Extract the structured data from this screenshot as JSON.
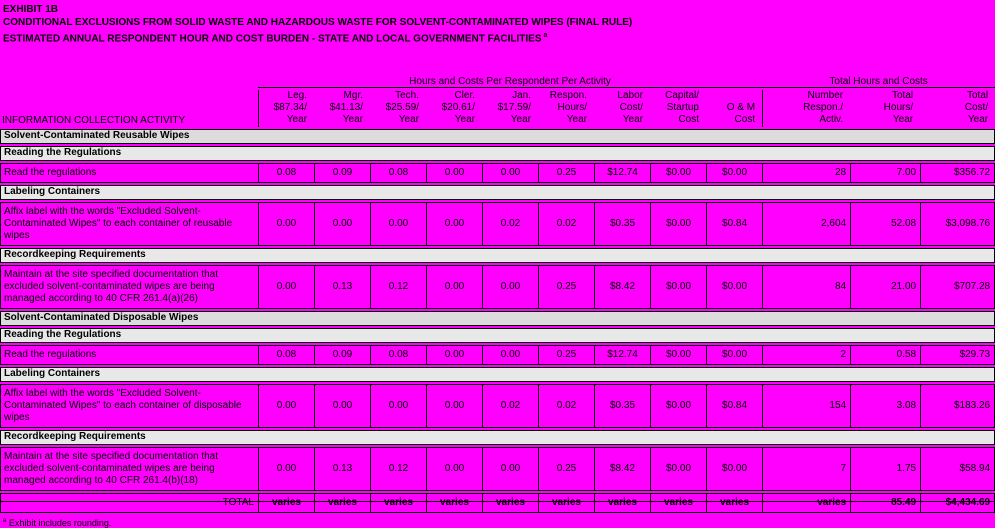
{
  "page": {
    "bg_color": "#FF00FF",
    "section_row_color": "#DCDCDC",
    "subsection_row_color": "#E8E8E8",
    "text_color": "#000000"
  },
  "title": {
    "line1": "EXHIBIT 1B",
    "line2": "CONDITIONAL EXCLUSIONS FROM SOLID WASTE AND HAZARDOUS WASTE FOR SOLVENT-CONTAMINATED WIPES (FINAL RULE)",
    "line3": "ESTIMATED ANNUAL RESPONDENT HOUR AND COST BURDEN - STATE AND LOCAL GOVERNMENT FACILITIES",
    "line3_superscript": "a"
  },
  "table": {
    "group_headers": {
      "per_respondent": "Hours and Costs Per Respondent Per Activity",
      "totals": "Total Hours and Costs"
    },
    "activity_header": "INFORMATION COLLECTION ACTIVITY",
    "columns": [
      {
        "l1": "Leg.",
        "l2": "$87.34/",
        "l3": "Year"
      },
      {
        "l1": "Mgr.",
        "l2": "$41.13/",
        "l3": "Year"
      },
      {
        "l1": "Tech.",
        "l2": "$25.59/",
        "l3": "Year"
      },
      {
        "l1": "Cler.",
        "l2": "$20.61/",
        "l3": "Year"
      },
      {
        "l1": "Jan.",
        "l2": "$17.59/",
        "l3": "Year"
      },
      {
        "l1": "Respon.",
        "l2": "Hours/",
        "l3": "Year"
      },
      {
        "l1": "Labor",
        "l2": "Cost/",
        "l3": "Year"
      },
      {
        "l1": "Capital/",
        "l2": "Startup",
        "l3": "Cost"
      },
      {
        "l1": "",
        "l2": "O & M",
        "l3": "Cost"
      },
      {
        "l1": "Number",
        "l2": "Respon./",
        "l3": "Activ."
      },
      {
        "l1": "Total",
        "l2": "Hours/",
        "l3": "Year"
      },
      {
        "l1": "Total",
        "l2": "Cost/",
        "l3": "Year"
      }
    ],
    "rows": [
      {
        "type": "section",
        "label": "Solvent-Contaminated Reusable Wipes"
      },
      {
        "type": "subsection",
        "label": "Reading the Regulations"
      },
      {
        "type": "data",
        "label": "Read the regulations",
        "values": [
          "0.08",
          "0.09",
          "0.08",
          "0.00",
          "0.00",
          "0.25",
          "$12.74",
          "$0.00",
          "$0.00",
          "28",
          "7.00",
          "$356.72"
        ]
      },
      {
        "type": "subsection",
        "label": "Labeling Containers"
      },
      {
        "type": "data",
        "label": "Affix label with the words \"Excluded Solvent-Contaminated Wipes\" to each container of reusable wipes",
        "values": [
          "0.00",
          "0.00",
          "0.00",
          "0.00",
          "0.02",
          "0.02",
          "$0.35",
          "$0.00",
          "$0.84",
          "2,604",
          "52.08",
          "$3,098.76"
        ]
      },
      {
        "type": "subsection",
        "label": "Recordkeeping Requirements"
      },
      {
        "type": "data",
        "label": "Maintain at the site specified documentation that excluded solvent-contaminated wipes are being managed according to 40 CFR 261.4(a)(26)",
        "values": [
          "0.00",
          "0.13",
          "0.12",
          "0.00",
          "0.00",
          "0.25",
          "$8.42",
          "$0.00",
          "$0.00",
          "84",
          "21.00",
          "$707.28"
        ]
      },
      {
        "type": "section",
        "label": "Solvent-Contaminated Disposable Wipes"
      },
      {
        "type": "subsection",
        "label": "Reading the Regulations"
      },
      {
        "type": "data",
        "label": "Read the regulations",
        "values": [
          "0.08",
          "0.09",
          "0.08",
          "0.00",
          "0.00",
          "0.25",
          "$12.74",
          "$0.00",
          "$0.00",
          "2",
          "0.58",
          "$29.73"
        ]
      },
      {
        "type": "subsection",
        "label": "Labeling Containers"
      },
      {
        "type": "data",
        "label": "Affix label with the words \"Excluded Solvent-Contaminated Wipes\" to each container of disposable wipes",
        "values": [
          "0.00",
          "0.00",
          "0.00",
          "0.00",
          "0.02",
          "0.02",
          "$0.35",
          "$0.00",
          "$0.84",
          "154",
          "3.08",
          "$183.26"
        ]
      },
      {
        "type": "subsection",
        "label": "Recordkeeping Requirements"
      },
      {
        "type": "data",
        "label": "Maintain at the site specified documentation that excluded solvent-contaminated wipes are being managed according to 40 CFR 261.4(b)(18)",
        "values": [
          "0.00",
          "0.13",
          "0.12",
          "0.00",
          "0.00",
          "0.25",
          "$8.42",
          "$0.00",
          "$0.00",
          "7",
          "1.75",
          "$58.94"
        ]
      },
      {
        "type": "total",
        "label": "TOTAL",
        "values": [
          "varies",
          "varies",
          "varies",
          "varies",
          "varies",
          "varies",
          "varies",
          "varies",
          "varies",
          "varies",
          "85.49",
          "$4,434.69"
        ]
      }
    ],
    "footnote_superscript": "a",
    "footnote": "Exhibit includes rounding."
  }
}
